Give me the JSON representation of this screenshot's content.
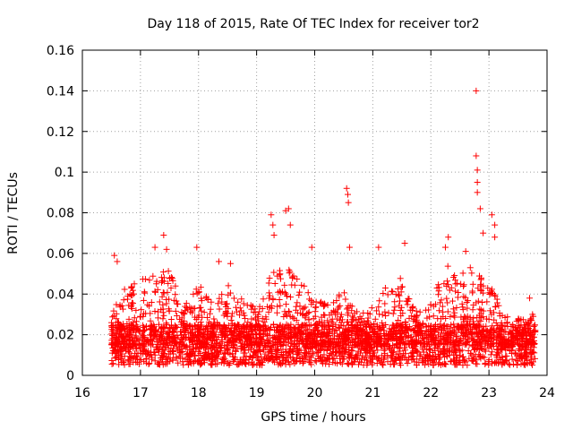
{
  "chart_data": {
    "type": "scatter",
    "title": "Day 118 of 2015, Rate Of TEC Index for receiver tor2",
    "xlabel": "GPS time / hours",
    "ylabel": "ROTI / TECUs",
    "xlim": [
      16,
      24
    ],
    "ylim": [
      0,
      0.16
    ],
    "xticks": [
      "16",
      "17",
      "18",
      "19",
      "20",
      "21",
      "22",
      "23",
      "24"
    ],
    "yticks": [
      "0",
      "0.02",
      "0.04",
      "0.06",
      "0.08",
      "0.1",
      "0.12",
      "0.14",
      "0.16"
    ],
    "grid": true,
    "marker": "+",
    "colors": {
      "series": "#ff0000"
    },
    "x_range_of_data": [
      16.5,
      23.8
    ],
    "series": [
      {
        "name": "ROTI",
        "baseline_band": [
          0.005,
          0.025
        ],
        "notable_points": [
          {
            "x": 16.55,
            "y": 0.059
          },
          {
            "x": 16.6,
            "y": 0.056
          },
          {
            "x": 17.25,
            "y": 0.063
          },
          {
            "x": 17.4,
            "y": 0.069
          },
          {
            "x": 17.45,
            "y": 0.062
          },
          {
            "x": 17.97,
            "y": 0.063
          },
          {
            "x": 18.35,
            "y": 0.056
          },
          {
            "x": 18.55,
            "y": 0.055
          },
          {
            "x": 19.25,
            "y": 0.079
          },
          {
            "x": 19.28,
            "y": 0.074
          },
          {
            "x": 19.3,
            "y": 0.069
          },
          {
            "x": 19.5,
            "y": 0.081
          },
          {
            "x": 19.55,
            "y": 0.082
          },
          {
            "x": 19.58,
            "y": 0.074
          },
          {
            "x": 19.95,
            "y": 0.063
          },
          {
            "x": 20.55,
            "y": 0.092
          },
          {
            "x": 20.57,
            "y": 0.089
          },
          {
            "x": 20.58,
            "y": 0.085
          },
          {
            "x": 20.6,
            "y": 0.063
          },
          {
            "x": 21.1,
            "y": 0.063
          },
          {
            "x": 21.55,
            "y": 0.065
          },
          {
            "x": 22.25,
            "y": 0.063
          },
          {
            "x": 22.3,
            "y": 0.068
          },
          {
            "x": 22.6,
            "y": 0.061
          },
          {
            "x": 22.78,
            "y": 0.14
          },
          {
            "x": 22.78,
            "y": 0.108
          },
          {
            "x": 22.8,
            "y": 0.101
          },
          {
            "x": 22.8,
            "y": 0.095
          },
          {
            "x": 22.8,
            "y": 0.09
          },
          {
            "x": 22.85,
            "y": 0.082
          },
          {
            "x": 22.9,
            "y": 0.07
          },
          {
            "x": 23.05,
            "y": 0.079
          },
          {
            "x": 23.1,
            "y": 0.074
          },
          {
            "x": 23.1,
            "y": 0.068
          },
          {
            "x": 23.7,
            "y": 0.038
          },
          {
            "x": 23.75,
            "y": 0.03
          }
        ],
        "envelope": [
          {
            "x": 16.5,
            "y": 0.03
          },
          {
            "x": 16.75,
            "y": 0.045
          },
          {
            "x": 17.0,
            "y": 0.048
          },
          {
            "x": 17.25,
            "y": 0.05
          },
          {
            "x": 17.5,
            "y": 0.052
          },
          {
            "x": 17.75,
            "y": 0.035
          },
          {
            "x": 18.0,
            "y": 0.045
          },
          {
            "x": 18.25,
            "y": 0.035
          },
          {
            "x": 18.5,
            "y": 0.045
          },
          {
            "x": 18.75,
            "y": 0.04
          },
          {
            "x": 19.0,
            "y": 0.032
          },
          {
            "x": 19.25,
            "y": 0.05
          },
          {
            "x": 19.5,
            "y": 0.055
          },
          {
            "x": 19.75,
            "y": 0.048
          },
          {
            "x": 20.0,
            "y": 0.04
          },
          {
            "x": 20.25,
            "y": 0.035
          },
          {
            "x": 20.5,
            "y": 0.042
          },
          {
            "x": 20.75,
            "y": 0.032
          },
          {
            "x": 21.0,
            "y": 0.035
          },
          {
            "x": 21.25,
            "y": 0.045
          },
          {
            "x": 21.5,
            "y": 0.048
          },
          {
            "x": 21.75,
            "y": 0.032
          },
          {
            "x": 22.0,
            "y": 0.035
          },
          {
            "x": 22.25,
            "y": 0.055
          },
          {
            "x": 22.5,
            "y": 0.05
          },
          {
            "x": 22.75,
            "y": 0.055
          },
          {
            "x": 23.0,
            "y": 0.048
          },
          {
            "x": 23.25,
            "y": 0.03
          },
          {
            "x": 23.5,
            "y": 0.028
          },
          {
            "x": 23.8,
            "y": 0.03
          }
        ]
      }
    ]
  }
}
